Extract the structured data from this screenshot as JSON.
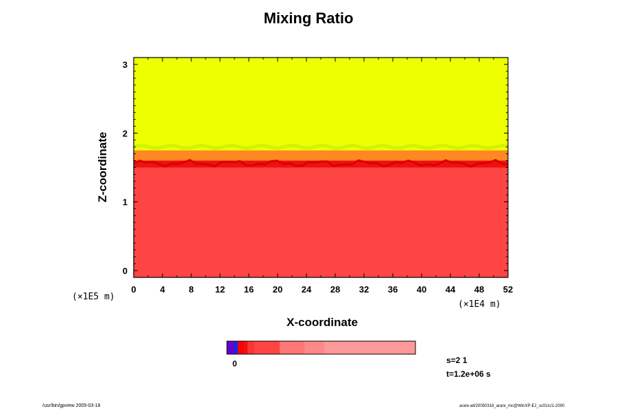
{
  "chart_data": {
    "type": "heatmap",
    "title": "Mixing Ratio",
    "xlabel": "X-coordinate",
    "ylabel": "Z-coordinate",
    "x_scale_label": "(×1E4 m)",
    "y_scale_label": "(×1E5 m)",
    "x_ticks": [
      "0",
      "4",
      "8",
      "12",
      "16",
      "20",
      "24",
      "28",
      "32",
      "36",
      "40",
      "44",
      "48",
      "52"
    ],
    "y_ticks": [
      "0",
      "1",
      "2",
      "3"
    ],
    "xlim": [
      0,
      52
    ],
    "ylim": [
      -0.1,
      3.1
    ],
    "layers": [
      {
        "name": "lower",
        "z_from": -0.1,
        "z_to": 1.55,
        "color": "#ff4444"
      },
      {
        "name": "interface",
        "z_from": 1.5,
        "z_to": 1.62,
        "color": "#ee1111"
      },
      {
        "name": "transition",
        "z_from": 1.6,
        "z_to": 1.75,
        "color": "#ff8822"
      },
      {
        "name": "upper",
        "z_from": 1.75,
        "z_to": 3.1,
        "color": "#eeff00"
      }
    ],
    "colorbar": {
      "zero_label": "0",
      "colors": [
        "#6600cc",
        "#2222dd",
        "#ff0000",
        "#ee1111",
        "#ff3333",
        "#ff4444",
        "#ff7777",
        "#ff8888",
        "#ff9999"
      ]
    },
    "annotations": {
      "s": "s=2 1",
      "t": "t=1.2e+06 s"
    }
  },
  "footer": {
    "left": "/usr/bin/gpview 2005-03-18",
    "right": "arare-all/20050318_arare_mc@WinXP-EJ_sc01/c/1-2000"
  }
}
